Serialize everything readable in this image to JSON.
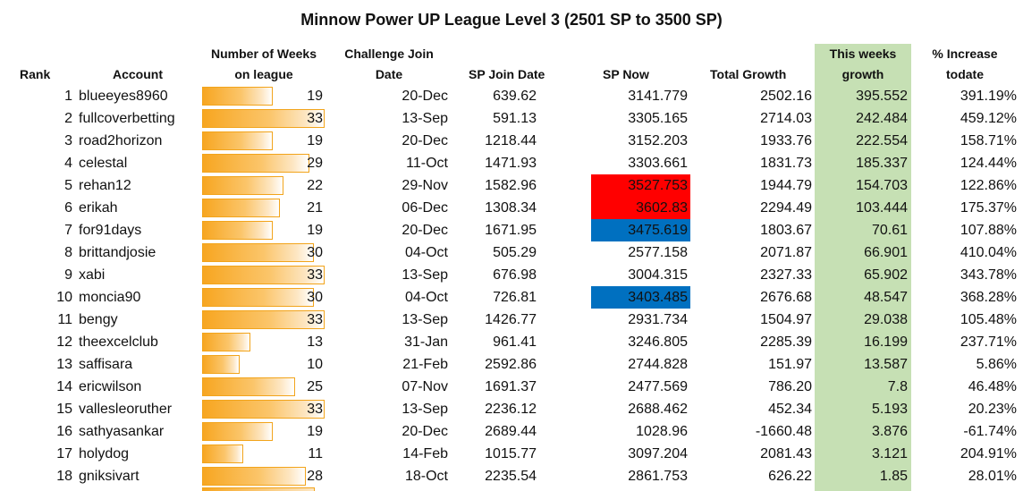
{
  "title": "Minnow Power UP League Level 3 (2501 SP to 3500 SP)",
  "headers": {
    "rank": "Rank",
    "account": "Account",
    "weeks_line1": "Number of Weeks",
    "weeks_line2": "on league",
    "join_line1": "Challenge Join",
    "join_line2": "Date",
    "sp_join": "SP Join Date",
    "sp_now": "SP Now",
    "total_growth": "Total Growth",
    "weekly_line1": "This weeks",
    "weekly_line2": "growth",
    "increase_line1": "% Increase",
    "increase_line2": "todate"
  },
  "colors": {
    "weekly_column": "#c6e0b4",
    "red_highlight": "#ff0000",
    "blue_highlight": "#0070c0",
    "bar": "#f7a621"
  },
  "weeks_max": 33,
  "rows": [
    {
      "rank": "1",
      "account": "blueeyes8960",
      "weeks": "19",
      "join": "20-Dec",
      "sp_join": "639.62",
      "sp_now": "3141.779",
      "growth": "2502.16",
      "weekly": "395.552",
      "increase": "391.19%",
      "highlight": ""
    },
    {
      "rank": "2",
      "account": "fullcoverbetting",
      "weeks": "33",
      "join": "13-Sep",
      "sp_join": "591.13",
      "sp_now": "3305.165",
      "growth": "2714.03",
      "weekly": "242.484",
      "increase": "459.12%",
      "highlight": ""
    },
    {
      "rank": "3",
      "account": "road2horizon",
      "weeks": "19",
      "join": "20-Dec",
      "sp_join": "1218.44",
      "sp_now": "3152.203",
      "growth": "1933.76",
      "weekly": "222.554",
      "increase": "158.71%",
      "highlight": ""
    },
    {
      "rank": "4",
      "account": "celestal",
      "weeks": "29",
      "join": "11-Oct",
      "sp_join": "1471.93",
      "sp_now": "3303.661",
      "growth": "1831.73",
      "weekly": "185.337",
      "increase": "124.44%",
      "highlight": ""
    },
    {
      "rank": "5",
      "account": "rehan12",
      "weeks": "22",
      "join": "29-Nov",
      "sp_join": "1582.96",
      "sp_now": "3527.753",
      "growth": "1944.79",
      "weekly": "154.703",
      "increase": "122.86%",
      "highlight": "red"
    },
    {
      "rank": "6",
      "account": "erikah",
      "weeks": "21",
      "join": "06-Dec",
      "sp_join": "1308.34",
      "sp_now": "3602.83",
      "growth": "2294.49",
      "weekly": "103.444",
      "increase": "175.37%",
      "highlight": "red"
    },
    {
      "rank": "7",
      "account": "for91days",
      "weeks": "19",
      "join": "20-Dec",
      "sp_join": "1671.95",
      "sp_now": "3475.619",
      "growth": "1803.67",
      "weekly": "70.61",
      "increase": "107.88%",
      "highlight": "blue"
    },
    {
      "rank": "8",
      "account": "brittandjosie",
      "weeks": "30",
      "join": "04-Oct",
      "sp_join": "505.29",
      "sp_now": "2577.158",
      "growth": "2071.87",
      "weekly": "66.901",
      "increase": "410.04%",
      "highlight": ""
    },
    {
      "rank": "9",
      "account": "xabi",
      "weeks": "33",
      "join": "13-Sep",
      "sp_join": "676.98",
      "sp_now": "3004.315",
      "growth": "2327.33",
      "weekly": "65.902",
      "increase": "343.78%",
      "highlight": ""
    },
    {
      "rank": "10",
      "account": "moncia90",
      "weeks": "30",
      "join": "04-Oct",
      "sp_join": "726.81",
      "sp_now": "3403.485",
      "growth": "2676.68",
      "weekly": "48.547",
      "increase": "368.28%",
      "highlight": "blue"
    },
    {
      "rank": "11",
      "account": "bengy",
      "weeks": "33",
      "join": "13-Sep",
      "sp_join": "1426.77",
      "sp_now": "2931.734",
      "growth": "1504.97",
      "weekly": "29.038",
      "increase": "105.48%",
      "highlight": ""
    },
    {
      "rank": "12",
      "account": "theexcelclub",
      "weeks": "13",
      "join": "31-Jan",
      "sp_join": "961.41",
      "sp_now": "3246.805",
      "growth": "2285.39",
      "weekly": "16.199",
      "increase": "237.71%",
      "highlight": ""
    },
    {
      "rank": "13",
      "account": "saffisara",
      "weeks": "10",
      "join": "21-Feb",
      "sp_join": "2592.86",
      "sp_now": "2744.828",
      "growth": "151.97",
      "weekly": "13.587",
      "increase": "5.86%",
      "highlight": ""
    },
    {
      "rank": "14",
      "account": "ericwilson",
      "weeks": "25",
      "join": "07-Nov",
      "sp_join": "1691.37",
      "sp_now": "2477.569",
      "growth": "786.20",
      "weekly": "7.8",
      "increase": "46.48%",
      "highlight": ""
    },
    {
      "rank": "15",
      "account": "vallesleoruther",
      "weeks": "33",
      "join": "13-Sep",
      "sp_join": "2236.12",
      "sp_now": "2688.462",
      "growth": "452.34",
      "weekly": "5.193",
      "increase": "20.23%",
      "highlight": ""
    },
    {
      "rank": "16",
      "account": "sathyasankar",
      "weeks": "19",
      "join": "20-Dec",
      "sp_join": "2689.44",
      "sp_now": "1028.96",
      "growth": "-1660.48",
      "weekly": "3.876",
      "increase": "-61.74%",
      "highlight": ""
    },
    {
      "rank": "17",
      "account": "holydog",
      "weeks": "11",
      "join": "14-Feb",
      "sp_join": "1015.77",
      "sp_now": "3097.204",
      "growth": "2081.43",
      "weekly": "3.121",
      "increase": "204.91%",
      "highlight": ""
    },
    {
      "rank": "18",
      "account": "gniksivart",
      "weeks": "28",
      "join": "18-Oct",
      "sp_join": "2235.54",
      "sp_now": "2861.753",
      "growth": "626.22",
      "weekly": "1.85",
      "increase": "28.01%",
      "highlight": ""
    }
  ]
}
